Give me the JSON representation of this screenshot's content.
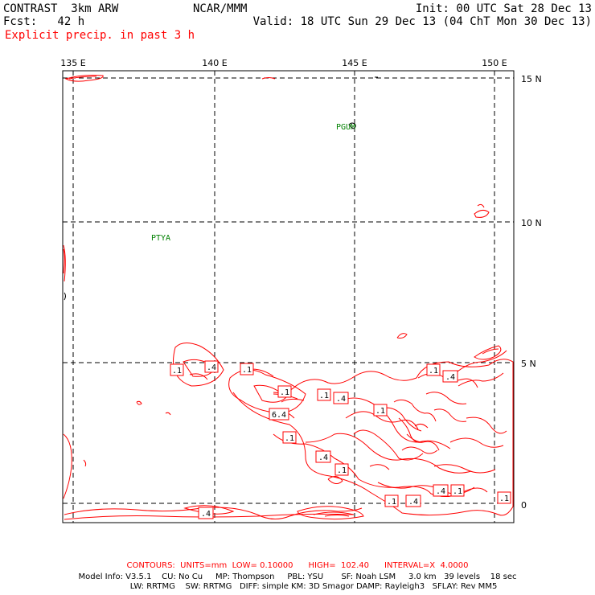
{
  "header": {
    "model": "CONTRAST  3km ARW",
    "center": "NCAR/MMM",
    "init": "Init: 00 UTC Sat 28 Dec 13",
    "fcst": "Fcst:   42 h",
    "valid": "Valid: 18 UTC Sun 29 Dec 13 (04 ChT Mon 30 Dec 13)",
    "field": "Explicit precip. in past 3 h"
  },
  "axes": {
    "lon_labels": [
      "135 E",
      "140 E",
      "145 E",
      "150 E"
    ],
    "lat_labels": [
      "15 N",
      "10 N",
      "5 N",
      "0"
    ]
  },
  "stations": [
    {
      "id": "PGUM"
    },
    {
      "id": "PTYA"
    }
  ],
  "contour_labels": [
    ".1",
    ".4",
    ".1",
    ".1",
    ".1",
    ".4",
    "6.4",
    ".1",
    ".1",
    ".4",
    ".1",
    ".1",
    ".4",
    ".4",
    ".1",
    ".1",
    ".4",
    ".1",
    ".4"
  ],
  "colors": {
    "contour": "#ff0000",
    "station": "#008000",
    "grid": "#000000"
  },
  "footer": {
    "contours": "CONTOURS:  UNITS=mm  LOW= 0.10000      HIGH=  102.40      INTERVAL=X  4.0000",
    "info1": "Model Info: V3.5.1    CU: No Cu     MP: Thompson     PBL: YSU       SF: Noah LSM     3.0 km   39 levels    18 sec",
    "info2": "LW: RRTMG    SW: RRTMG   DIFF: simple KM: 3D Smagor DAMP: Rayleigh3   SFLAY: Rev MM5"
  }
}
